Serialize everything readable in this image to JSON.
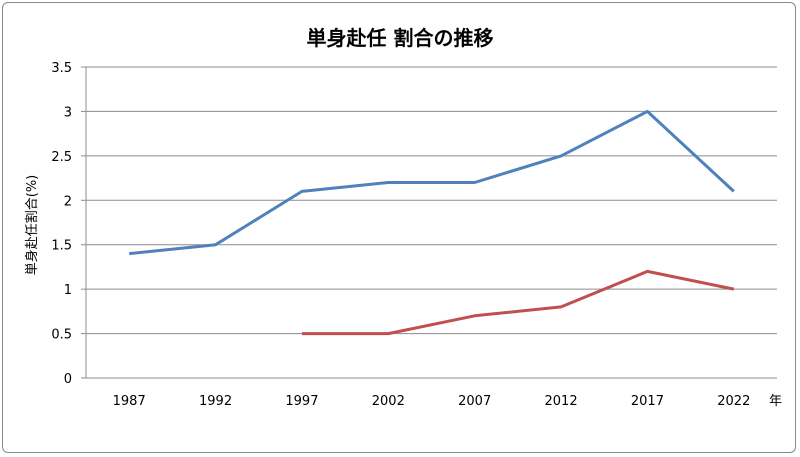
{
  "chart_data": {
    "type": "line",
    "title": "単身赴任 割合の推移",
    "xlabel": "年",
    "ylabel": "単身赴任割合(%)",
    "categories": [
      "1987",
      "1992",
      "1997",
      "2002",
      "2007",
      "2012",
      "2017",
      "2022"
    ],
    "ylim": [
      0,
      3.5
    ],
    "yticks": [
      "0",
      "0.5",
      "1",
      "1.5",
      "2",
      "2.5",
      "3",
      "3.5"
    ],
    "grid": true,
    "legend": "none",
    "series": [
      {
        "color": "#4f81bd",
        "values": [
          1.4,
          1.5,
          2.1,
          2.2,
          2.2,
          2.5,
          3.0,
          2.1
        ]
      },
      {
        "color": "#c0504d",
        "values": [
          null,
          null,
          0.5,
          0.5,
          0.7,
          0.8,
          1.2,
          1.0
        ]
      }
    ]
  }
}
